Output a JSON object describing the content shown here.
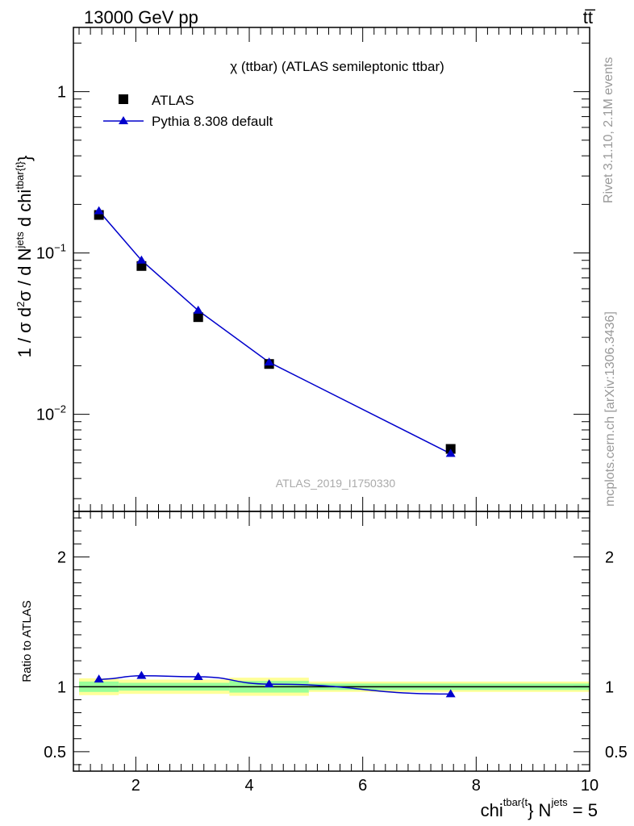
{
  "header": {
    "energy": "13000 GeV pp",
    "process": "tt̅"
  },
  "legend": {
    "title": "χ (ttbar) (ATLAS semileptonic ttbar)",
    "data_label": "ATLAS",
    "mc_label": "Pythia 8.308 default"
  },
  "watermark": "ATLAS_2019_I1750330",
  "side": {
    "rivet": "Rivet 3.1.10,  2.1M events",
    "mcplots": "mcplots.cern.ch [arXiv:1306.3436]"
  },
  "colors": {
    "data": "#000000",
    "mc": "#0000cc",
    "band_inner": "#99ff99",
    "band_outer": "#ffff99"
  },
  "chart_data": [
    {
      "type": "scatter",
      "panel": "main",
      "ylabel": "1 / σ d²σ / d N^jets d chi^tbar{t}",
      "yscale": "log",
      "xlim": [
        0.9,
        10.0
      ],
      "ylim": [
        0.0025,
        2.5
      ],
      "yticks": [
        {
          "value": 1,
          "label": "1"
        },
        {
          "value": 0.1,
          "label": "10",
          "exp": "−1"
        },
        {
          "value": 0.01,
          "label": "10",
          "exp": "−2"
        }
      ],
      "series": [
        {
          "name": "ATLAS",
          "marker": "square",
          "x": [
            1.35,
            2.1,
            3.1,
            4.35,
            7.55
          ],
          "y": [
            0.172,
            0.083,
            0.04,
            0.0205,
            0.0061
          ]
        },
        {
          "name": "Pythia 8.308 default",
          "marker": "triangle",
          "x": [
            1.35,
            2.1,
            3.1,
            4.35,
            7.55
          ],
          "y": [
            0.182,
            0.09,
            0.044,
            0.021,
            0.0057
          ]
        }
      ]
    },
    {
      "type": "line",
      "panel": "ratio",
      "ylabel": "Ratio to ATLAS",
      "xlabel": "chi^tbar{t} N^jets = 5",
      "xlim": [
        0.9,
        10.0
      ],
      "ylim": [
        0.35,
        2.35
      ],
      "xticks": [
        2,
        4,
        6,
        8,
        10
      ],
      "yticks": [
        0.5,
        1,
        2
      ],
      "bands": [
        {
          "x0": 1.0,
          "x1": 1.7,
          "inner": [
            0.96,
            1.04
          ],
          "outer": [
            0.935,
            1.065
          ]
        },
        {
          "x0": 1.7,
          "x1": 3.65,
          "inner": [
            0.97,
            1.03
          ],
          "outer": [
            0.945,
            1.055
          ]
        },
        {
          "x0": 3.65,
          "x1": 5.05,
          "inner": [
            0.955,
            1.045
          ],
          "outer": [
            0.93,
            1.07
          ]
        },
        {
          "x0": 5.05,
          "x1": 10.0,
          "inner": [
            0.975,
            1.025
          ],
          "outer": [
            0.96,
            1.04
          ]
        }
      ],
      "series": [
        {
          "name": "Pythia 8.308 default",
          "marker": "triangle",
          "x": [
            1.35,
            2.1,
            3.1,
            4.35,
            7.55
          ],
          "y": [
            1.057,
            1.085,
            1.077,
            1.02,
            0.944
          ]
        }
      ]
    }
  ]
}
